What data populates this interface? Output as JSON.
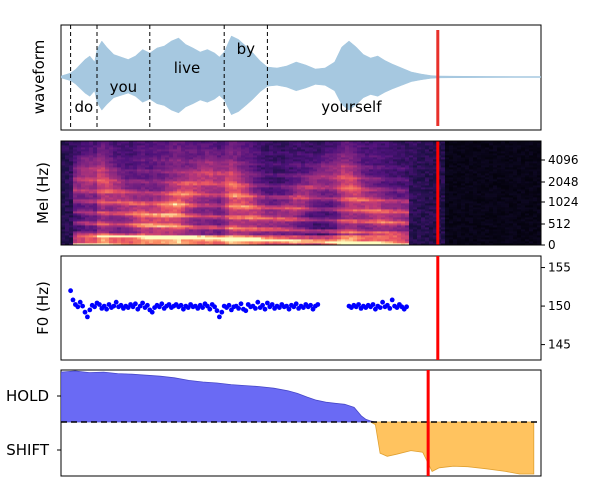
{
  "chart_data": [
    {
      "panel": "waveform",
      "type": "area",
      "ylabel": "waveform",
      "x_range": [
        0,
        1
      ],
      "fill_color": "#a6c8e0",
      "words": [
        {
          "text": "do",
          "start": 0.02,
          "end": 0.075
        },
        {
          "text": "you",
          "start": 0.075,
          "end": 0.185
        },
        {
          "text": "live",
          "start": 0.185,
          "end": 0.34
        },
        {
          "text": "by",
          "start": 0.34,
          "end": 0.43
        },
        {
          "text": "yourself",
          "start": 0.43,
          "end": 0.78
        }
      ],
      "cursor_x": 0.785,
      "cursor_color": "#e8302a",
      "envelope": [
        [
          0,
          0.02
        ],
        [
          0.02,
          0.08
        ],
        [
          0.03,
          0.15
        ],
        [
          0.04,
          0.25
        ],
        [
          0.05,
          0.35
        ],
        [
          0.06,
          0.42
        ],
        [
          0.07,
          0.3
        ],
        [
          0.075,
          0.55
        ],
        [
          0.085,
          0.72
        ],
        [
          0.095,
          0.6
        ],
        [
          0.11,
          0.45
        ],
        [
          0.125,
          0.4
        ],
        [
          0.14,
          0.35
        ],
        [
          0.155,
          0.42
        ],
        [
          0.17,
          0.55
        ],
        [
          0.185,
          0.48
        ],
        [
          0.2,
          0.58
        ],
        [
          0.215,
          0.62
        ],
        [
          0.23,
          0.72
        ],
        [
          0.245,
          0.78
        ],
        [
          0.26,
          0.65
        ],
        [
          0.275,
          0.58
        ],
        [
          0.29,
          0.5
        ],
        [
          0.305,
          0.55
        ],
        [
          0.32,
          0.48
        ],
        [
          0.33,
          0.4
        ],
        [
          0.34,
          0.5
        ],
        [
          0.355,
          0.82
        ],
        [
          0.37,
          0.75
        ],
        [
          0.385,
          0.62
        ],
        [
          0.4,
          0.48
        ],
        [
          0.415,
          0.32
        ],
        [
          0.43,
          0.2
        ],
        [
          0.45,
          0.18
        ],
        [
          0.47,
          0.22
        ],
        [
          0.49,
          0.3
        ],
        [
          0.51,
          0.24
        ],
        [
          0.53,
          0.16
        ],
        [
          0.55,
          0.18
        ],
        [
          0.57,
          0.3
        ],
        [
          0.585,
          0.6
        ],
        [
          0.6,
          0.72
        ],
        [
          0.615,
          0.6
        ],
        [
          0.63,
          0.45
        ],
        [
          0.645,
          0.38
        ],
        [
          0.66,
          0.42
        ],
        [
          0.675,
          0.33
        ],
        [
          0.69,
          0.26
        ],
        [
          0.71,
          0.18
        ],
        [
          0.73,
          0.1
        ],
        [
          0.75,
          0.06
        ],
        [
          0.77,
          0.03
        ],
        [
          0.785,
          0.02
        ],
        [
          1,
          0.0
        ]
      ]
    },
    {
      "panel": "mel",
      "type": "heatmap",
      "ylabel": "Mel (Hz)",
      "y_ticks": [
        "0",
        "512",
        "1024",
        "2048",
        "4096"
      ],
      "colormap": "magma",
      "cursor_x": 0.785
    },
    {
      "panel": "f0",
      "type": "scatter",
      "ylabel": "F0 (Hz)",
      "ylim": [
        143,
        156.5
      ],
      "y_ticks": [
        145,
        150,
        155
      ],
      "point_color": "#0000ff",
      "cursor_x": 0.785,
      "points": [
        [
          0.02,
          152.0
        ],
        [
          0.025,
          150.8
        ],
        [
          0.03,
          150.2
        ],
        [
          0.035,
          149.9
        ],
        [
          0.04,
          150.5
        ],
        [
          0.045,
          150.0
        ],
        [
          0.05,
          149.2
        ],
        [
          0.055,
          148.6
        ],
        [
          0.06,
          149.5
        ],
        [
          0.065,
          150.1
        ],
        [
          0.07,
          149.9
        ],
        [
          0.075,
          150.4
        ],
        [
          0.08,
          150.2
        ],
        [
          0.085,
          149.7
        ],
        [
          0.09,
          150.0
        ],
        [
          0.095,
          149.6
        ],
        [
          0.1,
          150.2
        ],
        [
          0.105,
          149.8
        ],
        [
          0.11,
          150.0
        ],
        [
          0.115,
          150.5
        ],
        [
          0.12,
          149.9
        ],
        [
          0.125,
          150.1
        ],
        [
          0.13,
          149.7
        ],
        [
          0.135,
          150.0
        ],
        [
          0.14,
          149.8
        ],
        [
          0.145,
          150.2
        ],
        [
          0.15,
          149.9
        ],
        [
          0.155,
          150.3
        ],
        [
          0.16,
          149.6
        ],
        [
          0.165,
          150.0
        ],
        [
          0.17,
          150.4
        ],
        [
          0.175,
          149.8
        ],
        [
          0.18,
          150.1
        ],
        [
          0.185,
          149.5
        ],
        [
          0.19,
          149.2
        ],
        [
          0.195,
          149.8
        ],
        [
          0.2,
          150.1
        ],
        [
          0.205,
          149.9
        ],
        [
          0.21,
          150.3
        ],
        [
          0.215,
          149.7
        ],
        [
          0.22,
          150.0
        ],
        [
          0.225,
          150.2
        ],
        [
          0.23,
          149.8
        ],
        [
          0.235,
          150.0
        ],
        [
          0.24,
          150.2
        ],
        [
          0.245,
          149.9
        ],
        [
          0.25,
          150.1
        ],
        [
          0.255,
          149.6
        ],
        [
          0.26,
          150.0
        ],
        [
          0.265,
          149.8
        ],
        [
          0.27,
          150.2
        ],
        [
          0.275,
          149.9
        ],
        [
          0.28,
          150.0
        ],
        [
          0.285,
          149.7
        ],
        [
          0.29,
          150.1
        ],
        [
          0.295,
          149.8
        ],
        [
          0.3,
          150.3
        ],
        [
          0.305,
          150.0
        ],
        [
          0.31,
          149.6
        ],
        [
          0.315,
          150.2
        ],
        [
          0.32,
          149.9
        ],
        [
          0.325,
          149.4
        ],
        [
          0.33,
          148.6
        ],
        [
          0.335,
          149.2
        ],
        [
          0.34,
          150.0
        ],
        [
          0.345,
          149.8
        ],
        [
          0.35,
          150.1
        ],
        [
          0.355,
          149.5
        ],
        [
          0.36,
          149.9
        ],
        [
          0.365,
          150.0
        ],
        [
          0.37,
          149.7
        ],
        [
          0.375,
          150.3
        ],
        [
          0.38,
          149.6
        ],
        [
          0.385,
          149.4
        ],
        [
          0.39,
          150.2
        ],
        [
          0.395,
          149.9
        ],
        [
          0.4,
          150.0
        ],
        [
          0.405,
          149.7
        ],
        [
          0.41,
          150.5
        ],
        [
          0.415,
          149.8
        ],
        [
          0.42,
          150.1
        ],
        [
          0.425,
          149.6
        ],
        [
          0.43,
          150.4
        ],
        [
          0.435,
          149.9
        ],
        [
          0.44,
          150.2
        ],
        [
          0.445,
          149.7
        ],
        [
          0.45,
          150.0
        ],
        [
          0.455,
          149.8
        ],
        [
          0.46,
          150.2
        ],
        [
          0.465,
          149.9
        ],
        [
          0.47,
          150.0
        ],
        [
          0.475,
          149.6
        ],
        [
          0.48,
          150.1
        ],
        [
          0.485,
          149.9
        ],
        [
          0.49,
          150.3
        ],
        [
          0.495,
          149.7
        ],
        [
          0.5,
          150.0
        ],
        [
          0.505,
          149.8
        ],
        [
          0.51,
          150.2
        ],
        [
          0.515,
          149.9
        ],
        [
          0.52,
          150.1
        ],
        [
          0.525,
          149.6
        ],
        [
          0.53,
          150.0
        ],
        [
          0.535,
          150.2
        ],
        [
          0.6,
          150.0
        ],
        [
          0.605,
          149.8
        ],
        [
          0.61,
          150.1
        ],
        [
          0.615,
          149.9
        ],
        [
          0.62,
          150.2
        ],
        [
          0.625,
          149.7
        ],
        [
          0.63,
          150.0
        ],
        [
          0.635,
          149.8
        ],
        [
          0.64,
          150.1
        ],
        [
          0.645,
          149.9
        ],
        [
          0.65,
          150.2
        ],
        [
          0.655,
          149.6
        ],
        [
          0.66,
          150.0
        ],
        [
          0.665,
          149.8
        ],
        [
          0.67,
          150.5
        ],
        [
          0.675,
          149.9
        ],
        [
          0.68,
          150.1
        ],
        [
          0.685,
          149.7
        ],
        [
          0.69,
          150.8
        ],
        [
          0.695,
          150.0
        ],
        [
          0.7,
          149.8
        ],
        [
          0.705,
          150.2
        ],
        [
          0.71,
          149.9
        ],
        [
          0.715,
          149.6
        ],
        [
          0.72,
          149.9
        ]
      ]
    },
    {
      "panel": "hold-shift",
      "type": "area",
      "y_ticks": [
        "HOLD",
        "SHIFT"
      ],
      "ylim": [
        -1,
        1
      ],
      "threshold": 0,
      "hold_color": "#6a6af4",
      "shift_color": "#ffc35f",
      "cursor_x": 0.785,
      "curve": [
        [
          0,
          0.96
        ],
        [
          0.03,
          0.98
        ],
        [
          0.06,
          0.95
        ],
        [
          0.09,
          0.96
        ],
        [
          0.12,
          0.93
        ],
        [
          0.15,
          0.92
        ],
        [
          0.18,
          0.9
        ],
        [
          0.21,
          0.88
        ],
        [
          0.24,
          0.85
        ],
        [
          0.27,
          0.8
        ],
        [
          0.3,
          0.77
        ],
        [
          0.33,
          0.75
        ],
        [
          0.36,
          0.72
        ],
        [
          0.39,
          0.7
        ],
        [
          0.42,
          0.68
        ],
        [
          0.45,
          0.65
        ],
        [
          0.48,
          0.6
        ],
        [
          0.5,
          0.55
        ],
        [
          0.52,
          0.48
        ],
        [
          0.54,
          0.42
        ],
        [
          0.56,
          0.38
        ],
        [
          0.58,
          0.36
        ],
        [
          0.6,
          0.34
        ],
        [
          0.62,
          0.28
        ],
        [
          0.635,
          0.12
        ],
        [
          0.645,
          0.05
        ],
        [
          0.655,
          0.02
        ],
        [
          0.665,
          -0.05
        ],
        [
          0.675,
          -0.6
        ],
        [
          0.69,
          -0.66
        ],
        [
          0.71,
          -0.62
        ],
        [
          0.74,
          -0.55
        ],
        [
          0.765,
          -0.58
        ],
        [
          0.785,
          -0.95
        ],
        [
          0.8,
          -0.88
        ],
        [
          0.83,
          -0.85
        ],
        [
          0.86,
          -0.86
        ],
        [
          0.9,
          -0.9
        ],
        [
          0.94,
          -0.95
        ],
        [
          0.97,
          -1.0
        ],
        [
          1,
          -1.0
        ]
      ]
    }
  ]
}
